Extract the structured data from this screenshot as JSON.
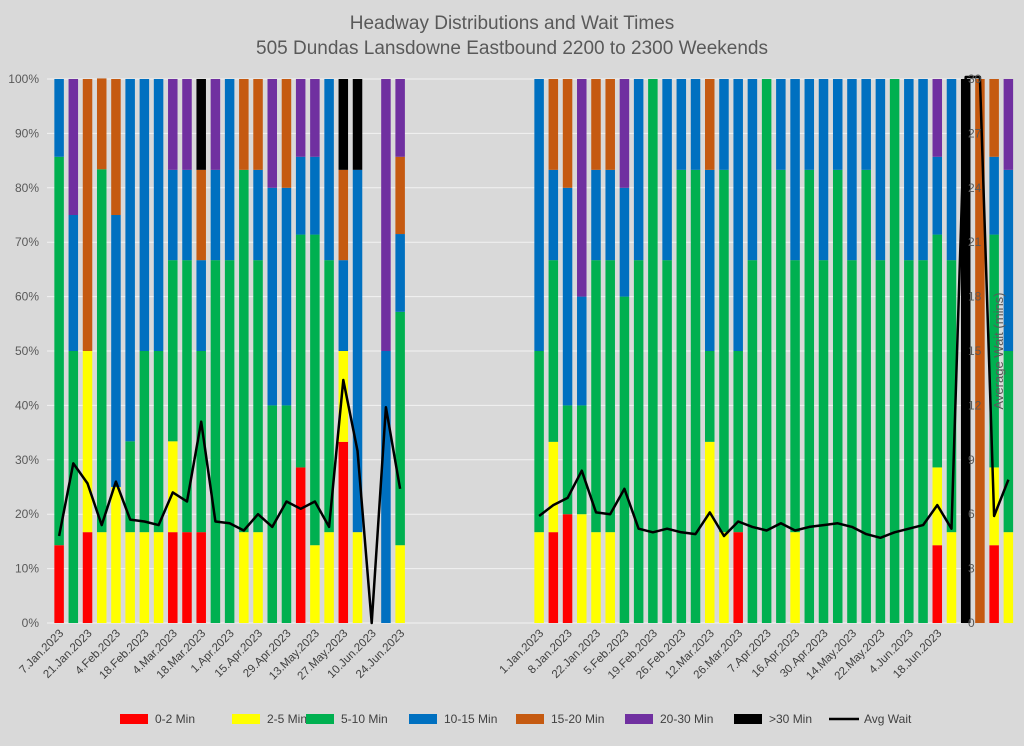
{
  "chart_data": {
    "type": "bar",
    "title": "Headway Distributions and Wait Times",
    "subtitle": "505 Dundas  Lansdowne Eastbound 2200 to 2300 Weekends",
    "ylabel_right": "Average Wait (mins)",
    "y_left_ticks": [
      "0%",
      "10%",
      "20%",
      "30%",
      "40%",
      "50%",
      "60%",
      "70%",
      "80%",
      "90%",
      "100%"
    ],
    "y_right_ticks": [
      "0",
      "3",
      "6",
      "9",
      "12",
      "15",
      "18",
      "21",
      "24",
      "27",
      "30"
    ],
    "ylim_left": [
      0,
      100
    ],
    "ylim_right": [
      0,
      30
    ],
    "grid": true,
    "legend_position": "bottom",
    "categories_colors": {
      "0-2 Min": "#ff0000",
      "2-5 Min": "#ffff00",
      "5-10 Min": "#00b050",
      "10-15 Min": "#0070c0",
      "15-20 Min": "#c55a11",
      "20-30 Min": "#7030a0",
      ">30 Min": "#000000",
      "Avg Wait": "#000000"
    },
    "legend": [
      "0-2 Min",
      "2-5 Min",
      "5-10 Min",
      "10-15 Min",
      "15-20 Min",
      "20-30 Min",
      ">30 Min",
      "Avg Wait"
    ],
    "panels": [
      {
        "tick_labels": [
          "7.Jan.2023",
          "21.Jan.2023",
          "4.Feb.2023",
          "18.Feb.2023",
          "4.Mar.2023",
          "18.Mar.2023",
          "1.Apr.2023",
          "15.Apr.2023",
          "29.Apr.2023",
          "13.May.2023",
          "27.May.2023",
          "10.Jun.2023",
          "24.Jun.2023"
        ],
        "bars": [
          [
            14.3,
            0,
            71.4,
            14.3,
            0,
            0,
            0
          ],
          [
            0,
            0,
            50,
            25,
            0,
            25,
            0
          ],
          [
            16.7,
            33.3,
            0,
            0,
            50,
            0,
            0
          ],
          [
            0,
            16.7,
            66.7,
            0,
            16.7,
            0,
            0
          ],
          [
            0,
            25,
            0,
            50,
            25,
            0,
            0
          ],
          [
            0,
            16.7,
            16.7,
            66.6,
            0,
            0,
            0
          ],
          [
            0,
            16.7,
            33.3,
            50,
            0,
            0,
            0
          ],
          [
            0,
            16.7,
            33.3,
            50,
            0,
            0,
            0
          ],
          [
            16.7,
            16.7,
            33.3,
            16.6,
            0,
            16.7,
            0
          ],
          [
            16.7,
            0,
            50,
            16.6,
            0,
            16.7,
            0
          ],
          [
            16.7,
            0,
            33.3,
            16.7,
            16.6,
            0,
            16.7
          ],
          [
            0,
            0,
            66.7,
            16.6,
            0,
            16.7,
            0
          ],
          [
            0,
            0,
            66.7,
            33.3,
            0,
            0,
            0
          ],
          [
            0,
            16.7,
            66.6,
            0,
            16.7,
            0,
            0
          ],
          [
            0,
            16.7,
            50,
            16.6,
            16.7,
            0,
            0
          ],
          [
            0,
            0,
            40,
            40,
            0,
            20,
            0
          ],
          [
            0,
            0,
            40,
            40,
            20,
            0,
            0
          ],
          [
            28.6,
            0,
            42.8,
            14.3,
            0,
            14.3,
            0
          ],
          [
            0,
            14.3,
            57.1,
            14.3,
            0,
            14.3,
            0
          ],
          [
            0,
            16.7,
            50,
            33.3,
            0,
            0,
            0
          ],
          [
            33.3,
            16.7,
            0,
            16.7,
            16.6,
            0,
            16.7
          ],
          [
            0,
            16.7,
            0,
            66.6,
            0,
            0,
            16.7
          ],
          [
            0,
            0,
            0,
            0,
            0,
            0,
            0
          ],
          [
            0,
            0,
            0,
            50,
            0,
            50,
            0
          ],
          [
            0,
            14.3,
            42.9,
            14.3,
            14.2,
            14.3,
            0
          ]
        ],
        "avg_wait": [
          4.8,
          8.8,
          7.7,
          5.4,
          7.8,
          5.7,
          5.6,
          5.4,
          7.2,
          6.7,
          11.1,
          5.6,
          5.5,
          5.1,
          6.0,
          5.3,
          6.7,
          6.3,
          6.7,
          5.3,
          13.4,
          9.5,
          0,
          11.9,
          7.4
        ]
      },
      {
        "tick_labels": [
          "1.Jan.2023",
          "8.Jan.2023",
          "22.Jan.2023",
          "5.Feb.2023",
          "19.Feb.2023",
          "26.Feb.2023",
          "12.Mar.2023",
          "26.Mar.2023",
          "7.Apr.2023",
          "16.Apr.2023",
          "30.Apr.2023",
          "14.May.2023",
          "22.May.2023",
          "4.Jun.2023",
          "18.Jun.2023"
        ],
        "bars": [
          [
            0,
            16.7,
            33.3,
            50,
            0,
            0,
            0
          ],
          [
            16.7,
            16.6,
            33.4,
            16.6,
            16.7,
            0,
            0
          ],
          [
            20,
            0,
            20,
            40,
            20,
            0,
            0
          ],
          [
            0,
            20,
            20,
            20,
            0,
            40,
            0
          ],
          [
            0,
            16.7,
            50,
            16.6,
            16.7,
            0,
            0
          ],
          [
            0,
            16.7,
            50,
            16.6,
            16.7,
            0,
            0
          ],
          [
            0,
            0,
            60,
            20,
            0,
            20,
            0
          ],
          [
            0,
            0,
            66.7,
            33.3,
            0,
            0,
            0
          ],
          [
            0,
            0,
            100,
            0,
            0,
            0,
            0
          ],
          [
            0,
            0,
            66.7,
            33.3,
            0,
            0,
            0
          ],
          [
            0,
            0,
            83.3,
            16.7,
            0,
            0,
            0
          ],
          [
            0,
            0,
            83.3,
            16.7,
            0,
            0,
            0
          ],
          [
            0,
            33.3,
            16.7,
            33.3,
            16.7,
            0,
            0
          ],
          [
            0,
            16.7,
            66.6,
            16.7,
            0,
            0,
            0
          ],
          [
            16.7,
            0,
            33.3,
            50,
            0,
            0,
            0
          ],
          [
            0,
            0,
            66.7,
            33.3,
            0,
            0,
            0
          ],
          [
            0,
            0,
            100,
            0,
            0,
            0,
            0
          ],
          [
            0,
            0,
            83.3,
            16.7,
            0,
            0,
            0
          ],
          [
            0,
            16.7,
            50,
            33.3,
            0,
            0,
            0
          ],
          [
            0,
            0,
            83.3,
            16.7,
            0,
            0,
            0
          ],
          [
            0,
            0,
            66.7,
            33.3,
            0,
            0,
            0
          ],
          [
            0,
            0,
            83.3,
            16.7,
            0,
            0,
            0
          ],
          [
            0,
            0,
            66.7,
            33.3,
            0,
            0,
            0
          ],
          [
            0,
            0,
            83.3,
            16.7,
            0,
            0,
            0
          ],
          [
            0,
            0,
            66.7,
            33.3,
            0,
            0,
            0
          ],
          [
            0,
            0,
            100,
            0,
            0,
            0,
            0
          ],
          [
            0,
            0,
            66.7,
            33.3,
            0,
            0,
            0
          ],
          [
            0,
            0,
            66.7,
            33.3,
            0,
            0,
            0
          ],
          [
            14.3,
            14.3,
            42.8,
            14.3,
            0,
            14.3,
            0
          ],
          [
            0,
            16.7,
            50,
            33.3,
            0,
            0,
            0
          ],
          [
            0,
            0,
            0,
            0,
            0,
            0,
            100
          ],
          [
            0,
            0,
            0,
            0,
            100,
            0,
            0
          ],
          [
            14.3,
            14.3,
            42.8,
            14.3,
            14.3,
            0,
            0
          ],
          [
            0,
            16.7,
            33.3,
            33.3,
            0,
            16.7,
            0
          ]
        ],
        "avg_wait": [
          5.9,
          6.5,
          6.9,
          8.4,
          6.1,
          6.0,
          7.4,
          5.2,
          5.0,
          5.2,
          5.0,
          4.9,
          6.1,
          4.8,
          5.6,
          5.3,
          5.1,
          5.5,
          5.1,
          5.3,
          5.4,
          5.5,
          5.3,
          4.9,
          4.7,
          5.0,
          5.2,
          5.4,
          6.5,
          5.2,
          33,
          33,
          5.9,
          7.9
        ]
      }
    ]
  }
}
